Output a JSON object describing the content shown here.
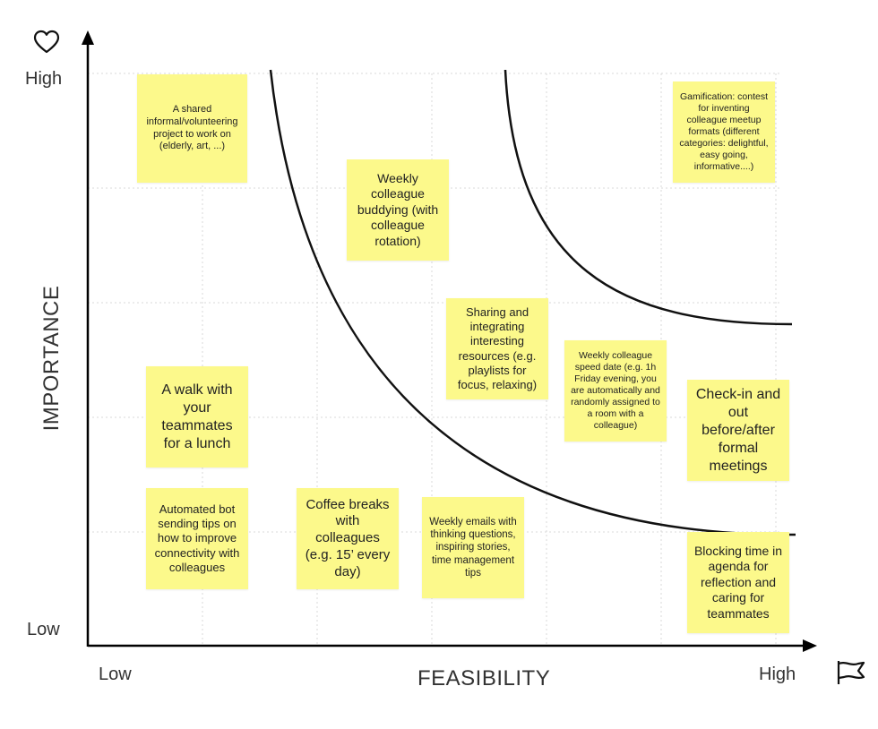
{
  "axes": {
    "y_title": "IMPORTANCE",
    "x_title": "FEASIBILITY",
    "y_high": "High",
    "y_low": "Low",
    "x_low": "Low",
    "x_high": "High",
    "y_icon": "heart-icon",
    "x_icon": "flag-icon"
  },
  "notes": [
    {
      "id": "shared-project",
      "text": "A shared informal/volunteering project to work on (elderly, art, ...)"
    },
    {
      "id": "weekly-buddying",
      "text": "Weekly colleague buddying (with colleague rotation)"
    },
    {
      "id": "gamification",
      "text": "Gamification: contest for inventing colleague meetup formats (different categories: delightful, easy going, informative....)"
    },
    {
      "id": "sharing-resources",
      "text": "Sharing and integrating interesting resources (e.g. playlists for focus, relaxing)"
    },
    {
      "id": "speed-date",
      "text": "Weekly colleague speed date (e.g. 1h Friday evening, you are automatically and randomly assigned to a room with a colleague)"
    },
    {
      "id": "walk-lunch",
      "text": "A walk with your teammates for a lunch"
    },
    {
      "id": "check-in-out",
      "text": "Check-in and out before/after formal meetings"
    },
    {
      "id": "automated-bot",
      "text": "Automated bot sending tips on how to improve connectivity with colleagues"
    },
    {
      "id": "coffee-breaks",
      "text": "Coffee breaks with colleagues (e.g. 15’ every day)"
    },
    {
      "id": "weekly-emails",
      "text": "Weekly emails with thinking questions, inspiring stories, time management tips"
    },
    {
      "id": "blocking-time",
      "text": "Blocking time in agenda for reflection and caring for teammates"
    }
  ],
  "colors": {
    "note": "#fcf98b",
    "curve": "#111111",
    "axis": "#000000",
    "grid": "#d9d9d9"
  }
}
